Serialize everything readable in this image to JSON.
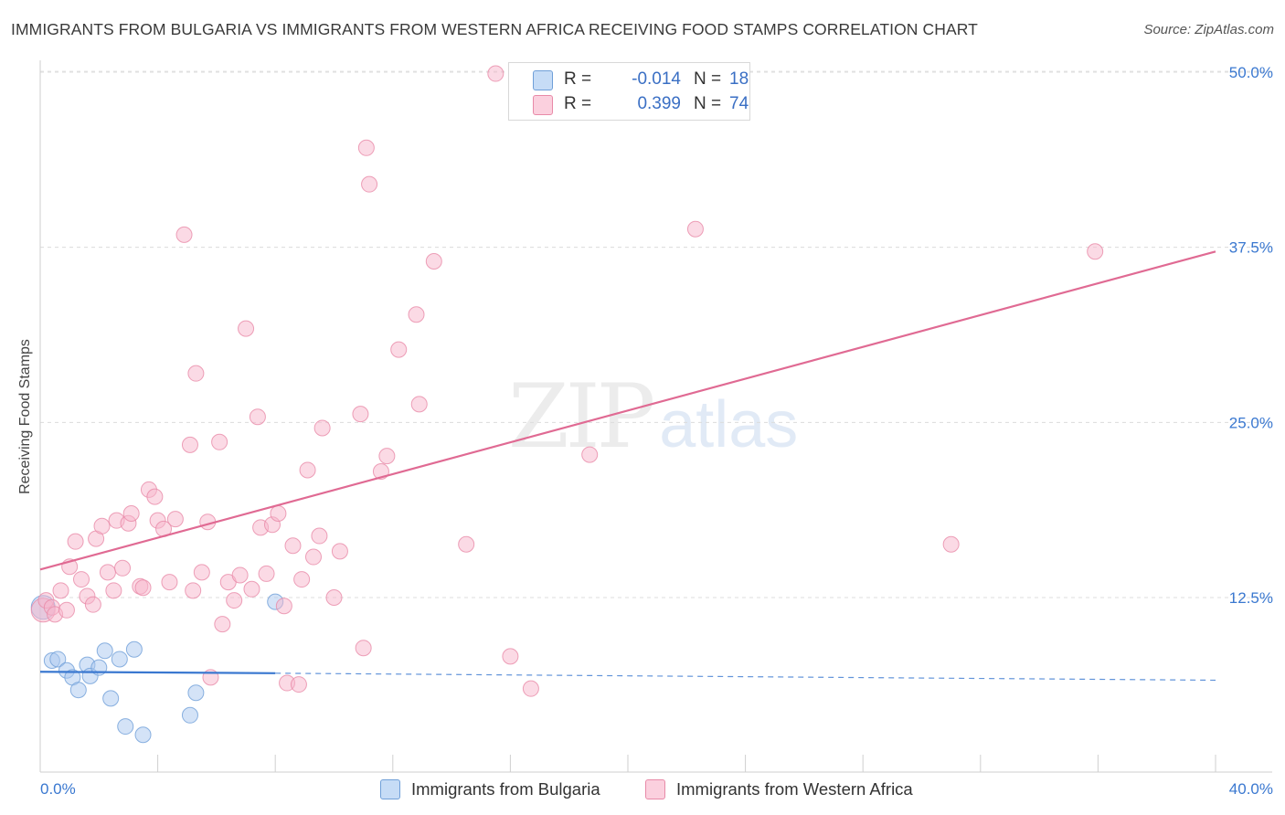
{
  "title": "IMMIGRANTS FROM BULGARIA VS IMMIGRANTS FROM WESTERN AFRICA RECEIVING FOOD STAMPS CORRELATION CHART",
  "source": "Source: ZipAtlas.com",
  "watermark": {
    "part1": "ZIP",
    "part2": "atlas"
  },
  "legend": {
    "rows": [
      {
        "r_label": "R =",
        "r_value": "-0.014",
        "n_label": "N =",
        "n_value": "18",
        "color": "#a9c8f0"
      },
      {
        "r_label": "R =",
        "r_value": "0.399",
        "n_label": "N =",
        "n_value": "74",
        "color": "#f7b6cb"
      }
    ]
  },
  "bottom_legend": [
    {
      "label": "Immigrants from Bulgaria",
      "color": "#a9c8f0"
    },
    {
      "label": "Immigrants from Western Africa",
      "color": "#f7b6cb"
    }
  ],
  "chart_data": {
    "type": "scatter",
    "title": "IMMIGRANTS FROM BULGARIA VS IMMIGRANTS FROM WESTERN AFRICA RECEIVING FOOD STAMPS CORRELATION CHART",
    "xlabel": "",
    "ylabel": "Receiving Food Stamps",
    "xlim": [
      0,
      40
    ],
    "ylim": [
      0,
      52
    ],
    "x_tick_labels": [
      "0.0%",
      "40.0%"
    ],
    "y_tick_labels": [
      "12.5%",
      "25.0%",
      "37.5%",
      "50.0%"
    ],
    "y_ticks": [
      12.5,
      25.0,
      37.5,
      50.0
    ],
    "grid": "horizontal dashed",
    "legend_position": "top-center",
    "series": [
      {
        "name": "Immigrants from Bulgaria",
        "color": "#a9c8f0",
        "stroke": "#6f9fd8",
        "trend_color": "#3a78d0",
        "trend": {
          "x_start": 0,
          "y_start": 7.2,
          "x_solid_end": 8.0,
          "y_solid_end": 7.1,
          "x_end": 40,
          "y_end": 6.6
        },
        "points": [
          [
            0.1,
            11.8
          ],
          [
            0.4,
            8.0
          ],
          [
            0.6,
            8.1
          ],
          [
            0.9,
            7.3
          ],
          [
            1.1,
            6.8
          ],
          [
            1.3,
            5.9
          ],
          [
            1.6,
            7.7
          ],
          [
            1.7,
            6.9
          ],
          [
            2.0,
            7.5
          ],
          [
            2.2,
            8.7
          ],
          [
            2.4,
            5.3
          ],
          [
            2.7,
            8.1
          ],
          [
            2.9,
            3.3
          ],
          [
            3.2,
            8.8
          ],
          [
            3.5,
            2.7
          ],
          [
            5.1,
            4.1
          ],
          [
            5.3,
            5.7
          ],
          [
            8.0,
            12.2
          ]
        ]
      },
      {
        "name": "Immigrants from Western Africa",
        "color": "#f7b6cb",
        "stroke": "#e88aa8",
        "trend_color": "#e06a93",
        "trend": {
          "x_start": 0,
          "y_start": 14.5,
          "x_end": 40,
          "y_end": 37.2
        },
        "points": [
          [
            0.1,
            11.6
          ],
          [
            0.2,
            12.3
          ],
          [
            0.4,
            11.8
          ],
          [
            0.5,
            11.3
          ],
          [
            0.7,
            13.0
          ],
          [
            0.9,
            11.6
          ],
          [
            1.0,
            14.7
          ],
          [
            1.2,
            16.5
          ],
          [
            1.4,
            13.8
          ],
          [
            1.6,
            12.6
          ],
          [
            1.8,
            12.0
          ],
          [
            1.9,
            16.7
          ],
          [
            2.1,
            17.6
          ],
          [
            2.3,
            14.3
          ],
          [
            2.5,
            13.0
          ],
          [
            2.6,
            18.0
          ],
          [
            2.8,
            14.6
          ],
          [
            3.0,
            17.8
          ],
          [
            3.1,
            18.5
          ],
          [
            3.4,
            13.3
          ],
          [
            3.5,
            13.2
          ],
          [
            3.7,
            20.2
          ],
          [
            3.9,
            19.7
          ],
          [
            4.0,
            18.0
          ],
          [
            4.2,
            17.4
          ],
          [
            4.4,
            13.6
          ],
          [
            4.6,
            18.1
          ],
          [
            4.9,
            38.4
          ],
          [
            5.1,
            23.4
          ],
          [
            5.2,
            13.0
          ],
          [
            5.3,
            28.5
          ],
          [
            5.5,
            14.3
          ],
          [
            5.7,
            17.9
          ],
          [
            5.8,
            6.8
          ],
          [
            6.1,
            23.6
          ],
          [
            6.2,
            10.6
          ],
          [
            6.4,
            13.6
          ],
          [
            6.6,
            12.3
          ],
          [
            6.8,
            14.1
          ],
          [
            7.0,
            31.7
          ],
          [
            7.2,
            13.1
          ],
          [
            7.4,
            25.4
          ],
          [
            7.5,
            17.5
          ],
          [
            7.7,
            14.2
          ],
          [
            7.9,
            17.7
          ],
          [
            8.1,
            18.5
          ],
          [
            8.3,
            11.9
          ],
          [
            8.4,
            6.4
          ],
          [
            8.6,
            16.2
          ],
          [
            8.8,
            6.3
          ],
          [
            8.9,
            13.8
          ],
          [
            9.1,
            21.6
          ],
          [
            9.3,
            15.4
          ],
          [
            9.5,
            16.9
          ],
          [
            9.6,
            24.6
          ],
          [
            10.0,
            12.5
          ],
          [
            10.2,
            15.8
          ],
          [
            10.9,
            25.6
          ],
          [
            11.0,
            8.9
          ],
          [
            11.1,
            44.6
          ],
          [
            11.2,
            42.0
          ],
          [
            11.6,
            21.5
          ],
          [
            11.8,
            22.6
          ],
          [
            12.2,
            30.2
          ],
          [
            12.8,
            32.7
          ],
          [
            12.9,
            26.3
          ],
          [
            13.4,
            36.5
          ],
          [
            14.5,
            16.3
          ],
          [
            15.5,
            49.9
          ],
          [
            16.0,
            8.3
          ],
          [
            16.7,
            6.0
          ],
          [
            18.7,
            22.7
          ],
          [
            22.3,
            38.8
          ],
          [
            31.0,
            16.3
          ],
          [
            35.9,
            37.2
          ]
        ]
      }
    ]
  }
}
